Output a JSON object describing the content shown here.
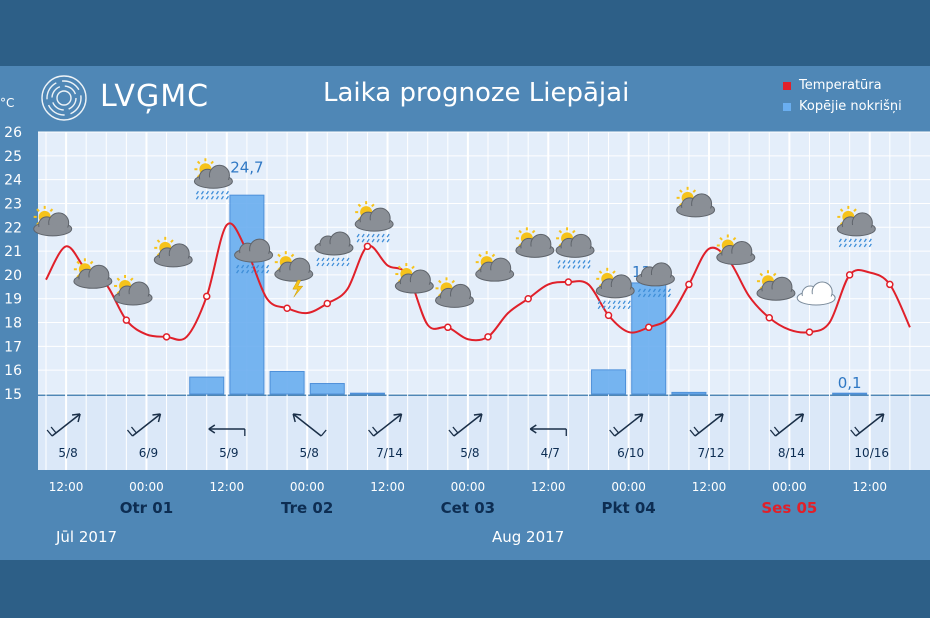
{
  "header": {
    "logo_text": "LVĢMC",
    "title": "Laika prognoze Liepājai",
    "unit_label": "°C"
  },
  "legend": {
    "temperature_label": "Temperatūra",
    "precip_label": "Kopējie nokrišņi",
    "temperature_color": "#e0202a",
    "precip_color": "#6aaef0"
  },
  "months": {
    "left": "Jūl 2017",
    "right": "Aug 2017"
  },
  "chart_data": {
    "type": "line",
    "title": "Laika prognoze Liepājai",
    "ylabel": "°C",
    "ylim": [
      15,
      26
    ],
    "yticks": [
      15,
      16,
      17,
      18,
      19,
      20,
      21,
      22,
      23,
      24,
      25,
      26
    ],
    "grid": true,
    "legend_position": "top-right",
    "time_range_hours": [
      0,
      111
    ],
    "time_ticks": [
      {
        "h": 3,
        "label": "12:00"
      },
      {
        "h": 15,
        "label": "00:00"
      },
      {
        "h": 27,
        "label": "12:00"
      },
      {
        "h": 39,
        "label": "00:00"
      },
      {
        "h": 51,
        "label": "12:00"
      },
      {
        "h": 63,
        "label": "00:00"
      },
      {
        "h": 75,
        "label": "12:00"
      },
      {
        "h": 87,
        "label": "00:00"
      },
      {
        "h": 99,
        "label": "12:00"
      },
      {
        "h": 111,
        "label": "00:00"
      },
      {
        "h": 123,
        "label": "12:00"
      }
    ],
    "day_labels": [
      {
        "h": 15,
        "label": "Otr 01",
        "color": "#0d2d52"
      },
      {
        "h": 39,
        "label": "Tre 02",
        "color": "#0d2d52"
      },
      {
        "h": 63,
        "label": "Cet 03",
        "color": "#0d2d52"
      },
      {
        "h": 87,
        "label": "Pkt 04",
        "color": "#0d2d52"
      },
      {
        "h": 111,
        "label": "Ses 05",
        "color": "#e0202a"
      }
    ],
    "series": [
      {
        "name": "Temperatūra",
        "kind": "line",
        "color": "#e0202a",
        "points": [
          {
            "h": 0,
            "v": 19.8
          },
          {
            "h": 3,
            "v": 21.2
          },
          {
            "h": 6,
            "v": 20.2
          },
          {
            "h": 9,
            "v": 19.6
          },
          {
            "h": 12,
            "v": 18.1
          },
          {
            "h": 15,
            "v": 17.5
          },
          {
            "h": 18,
            "v": 17.4
          },
          {
            "h": 21,
            "v": 17.4
          },
          {
            "h": 24,
            "v": 19.1
          },
          {
            "h": 27,
            "v": 22.1
          },
          {
            "h": 30,
            "v": 21.0
          },
          {
            "h": 33,
            "v": 19.0
          },
          {
            "h": 36,
            "v": 18.6
          },
          {
            "h": 39,
            "v": 18.4
          },
          {
            "h": 42,
            "v": 18.8
          },
          {
            "h": 45,
            "v": 19.4
          },
          {
            "h": 48,
            "v": 21.2
          },
          {
            "h": 51,
            "v": 20.4
          },
          {
            "h": 54,
            "v": 20.0
          },
          {
            "h": 57,
            "v": 17.9
          },
          {
            "h": 60,
            "v": 17.8
          },
          {
            "h": 63,
            "v": 17.3
          },
          {
            "h": 66,
            "v": 17.4
          },
          {
            "h": 69,
            "v": 18.4
          },
          {
            "h": 72,
            "v": 19.0
          },
          {
            "h": 75,
            "v": 19.6
          },
          {
            "h": 78,
            "v": 19.7
          },
          {
            "h": 81,
            "v": 19.6
          },
          {
            "h": 84,
            "v": 18.3
          },
          {
            "h": 87,
            "v": 17.6
          },
          {
            "h": 90,
            "v": 17.8
          },
          {
            "h": 93,
            "v": 18.2
          },
          {
            "h": 96,
            "v": 19.6
          },
          {
            "h": 99,
            "v": 21.1
          },
          {
            "h": 102,
            "v": 20.6
          },
          {
            "h": 105,
            "v": 19.1
          },
          {
            "h": 108,
            "v": 18.2
          },
          {
            "h": 111,
            "v": 17.7
          },
          {
            "h": 114,
            "v": 17.6
          },
          {
            "h": 117,
            "v": 18.0
          },
          {
            "h": 120,
            "v": 20.0
          },
          {
            "h": 123,
            "v": 20.1
          },
          {
            "h": 126,
            "v": 19.6
          },
          {
            "h": 129,
            "v": 17.8
          }
        ]
      },
      {
        "name": "Kopējie nokrišņi",
        "kind": "bar",
        "color": "#6aaef0",
        "bars": [
          {
            "h": 24,
            "v": 2.1
          },
          {
            "h": 30,
            "v": 24.7,
            "label": "24,7"
          },
          {
            "h": 36,
            "v": 2.8
          },
          {
            "h": 42,
            "v": 1.3
          },
          {
            "h": 48,
            "v": 0.1
          },
          {
            "h": 84,
            "v": 3.0
          },
          {
            "h": 90,
            "v": 13.8,
            "label": "13,8"
          },
          {
            "h": 96,
            "v": 0.2
          },
          {
            "h": 120,
            "v": 0.1,
            "label": "0,1"
          }
        ]
      }
    ],
    "weather_icons": [
      {
        "h": 1,
        "t": 22.1,
        "type": "sun-cloud"
      },
      {
        "h": 7,
        "t": 19.9,
        "type": "sun-cloud"
      },
      {
        "h": 13,
        "t": 19.2,
        "type": "sun-cloud"
      },
      {
        "h": 19,
        "t": 20.8,
        "type": "sun-cloud"
      },
      {
        "h": 25,
        "t": 24.1,
        "type": "sun-cloud-rain"
      },
      {
        "h": 31,
        "t": 21.0,
        "type": "cloud-rain"
      },
      {
        "h": 37,
        "t": 20.2,
        "type": "sun-cloud-thunder"
      },
      {
        "h": 43,
        "t": 21.3,
        "type": "cloud-rain"
      },
      {
        "h": 49,
        "t": 22.3,
        "type": "sun-cloud-rain"
      },
      {
        "h": 55,
        "t": 19.7,
        "type": "sun-cloud"
      },
      {
        "h": 61,
        "t": 19.1,
        "type": "sun-cloud"
      },
      {
        "h": 67,
        "t": 20.2,
        "type": "sun-cloud"
      },
      {
        "h": 73,
        "t": 21.2,
        "type": "sun-cloud"
      },
      {
        "h": 79,
        "t": 21.2,
        "type": "sun-cloud-rain"
      },
      {
        "h": 85,
        "t": 19.5,
        "type": "sun-cloud-rain"
      },
      {
        "h": 91,
        "t": 20.0,
        "type": "cloud-rain"
      },
      {
        "h": 97,
        "t": 22.9,
        "type": "sun-cloud"
      },
      {
        "h": 103,
        "t": 20.9,
        "type": "sun-cloud"
      },
      {
        "h": 109,
        "t": 19.4,
        "type": "sun-cloud"
      },
      {
        "h": 115,
        "t": 19.2,
        "type": "white-cloud"
      },
      {
        "h": 121,
        "t": 22.1,
        "type": "sun-cloud-rain"
      }
    ],
    "wind": [
      {
        "h": 3,
        "dir": "ne",
        "label": "5/8"
      },
      {
        "h": 15,
        "dir": "ne",
        "label": "6/9"
      },
      {
        "h": 27,
        "dir": "w",
        "label": "5/9"
      },
      {
        "h": 39,
        "dir": "nw",
        "label": "5/8"
      },
      {
        "h": 51,
        "dir": "ne",
        "label": "7/14"
      },
      {
        "h": 63,
        "dir": "ne",
        "label": "5/8"
      },
      {
        "h": 75,
        "dir": "w",
        "label": "4/7"
      },
      {
        "h": 87,
        "dir": "ne",
        "label": "6/10"
      },
      {
        "h": 99,
        "dir": "ne",
        "label": "7/12"
      },
      {
        "h": 111,
        "dir": "ne",
        "label": "8/14"
      },
      {
        "h": 123,
        "dir": "ne",
        "label": "10/16"
      }
    ]
  }
}
